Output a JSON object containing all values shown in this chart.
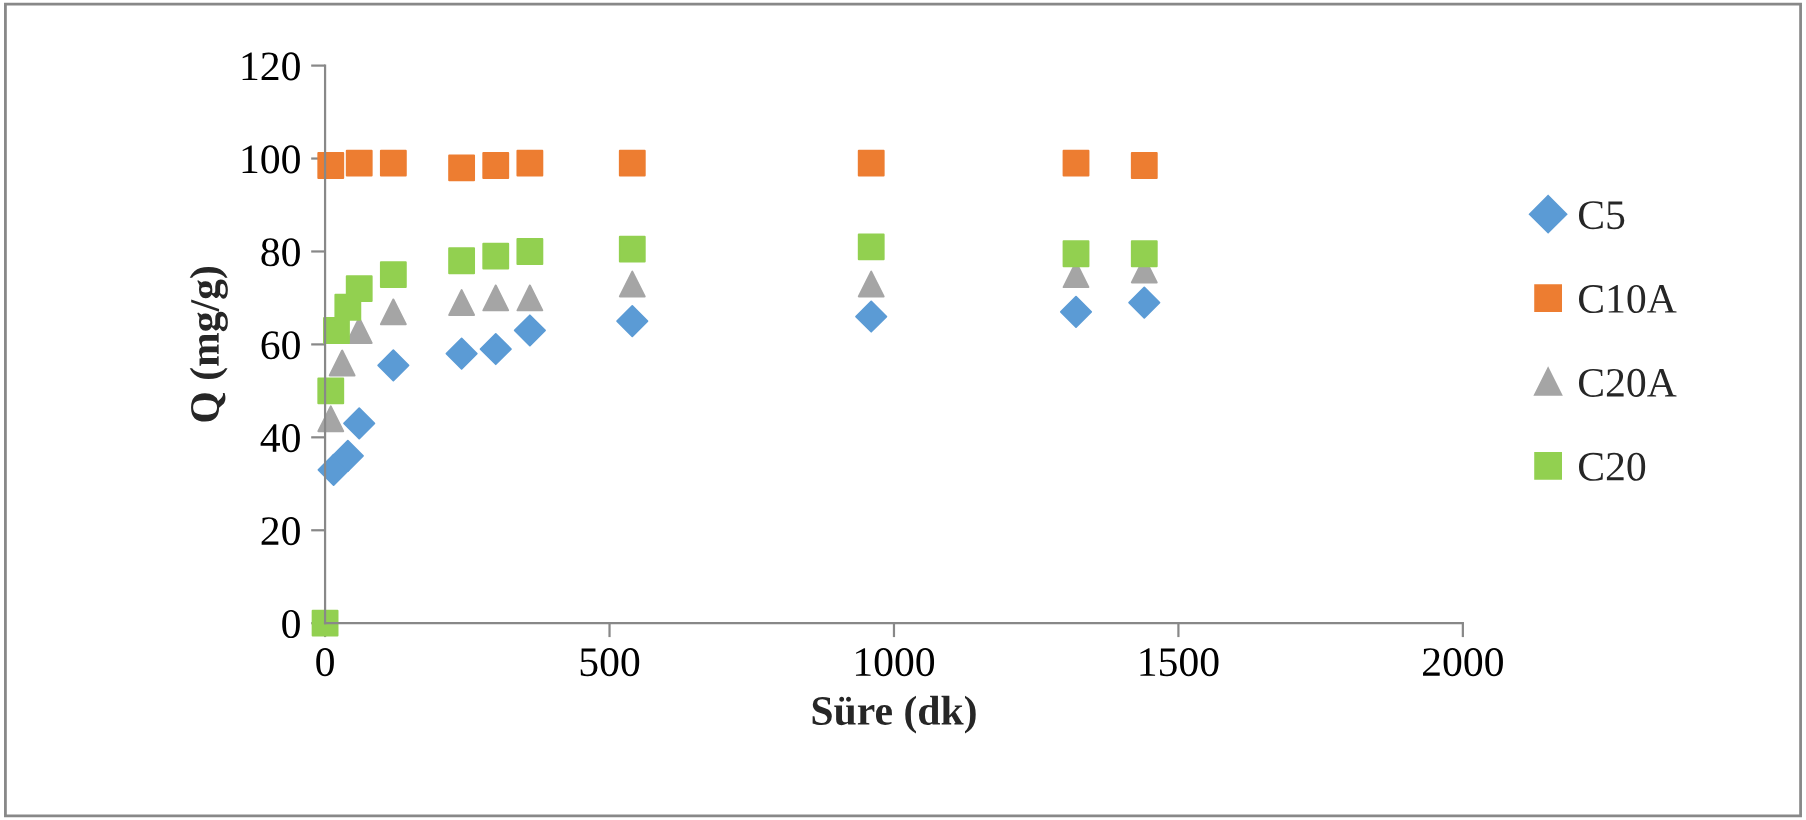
{
  "chart_data": {
    "type": "scatter",
    "xlabel": "Süre (dk)",
    "ylabel": "Q (mg/g)",
    "series": [
      {
        "name": "C5",
        "color": "#5b9bd5",
        "marker": "diamond",
        "x": [
          15,
          40,
          60,
          120,
          240,
          300,
          360,
          540,
          960,
          1320,
          1440
        ],
        "values": [
          33,
          36,
          43,
          55.5,
          58,
          59,
          63,
          65,
          66,
          67,
          69
        ]
      },
      {
        "name": "C10A",
        "color": "#ed7d31",
        "marker": "square",
        "x": [
          10,
          60,
          120,
          240,
          300,
          360,
          540,
          960,
          1320,
          1440
        ],
        "values": [
          98.5,
          99,
          99,
          98,
          98.5,
          99,
          99,
          99,
          99,
          98.5
        ]
      },
      {
        "name": "C20A",
        "color": "#a5a5a5",
        "marker": "triangle",
        "x": [
          10,
          30,
          60,
          120,
          240,
          300,
          360,
          540,
          960,
          1320,
          1440
        ],
        "values": [
          44,
          56,
          63,
          67,
          69,
          70,
          70,
          73,
          73,
          75,
          76
        ]
      },
      {
        "name": "C20",
        "color": "#92d050",
        "marker": "square",
        "x": [
          0,
          10,
          20,
          40,
          60,
          120,
          240,
          300,
          360,
          540,
          960,
          1320,
          1440
        ],
        "values": [
          0,
          50,
          63,
          68,
          72,
          75,
          78,
          79,
          80,
          80.5,
          81,
          79.5,
          79.5
        ]
      }
    ],
    "xlim": [
      0,
      2000
    ],
    "xticks": [
      0,
      500,
      1000,
      1500,
      2000
    ],
    "ylim": [
      0,
      120
    ],
    "yticks": [
      0,
      20,
      40,
      60,
      80,
      100,
      120
    ],
    "grid": false,
    "legend": "right"
  }
}
